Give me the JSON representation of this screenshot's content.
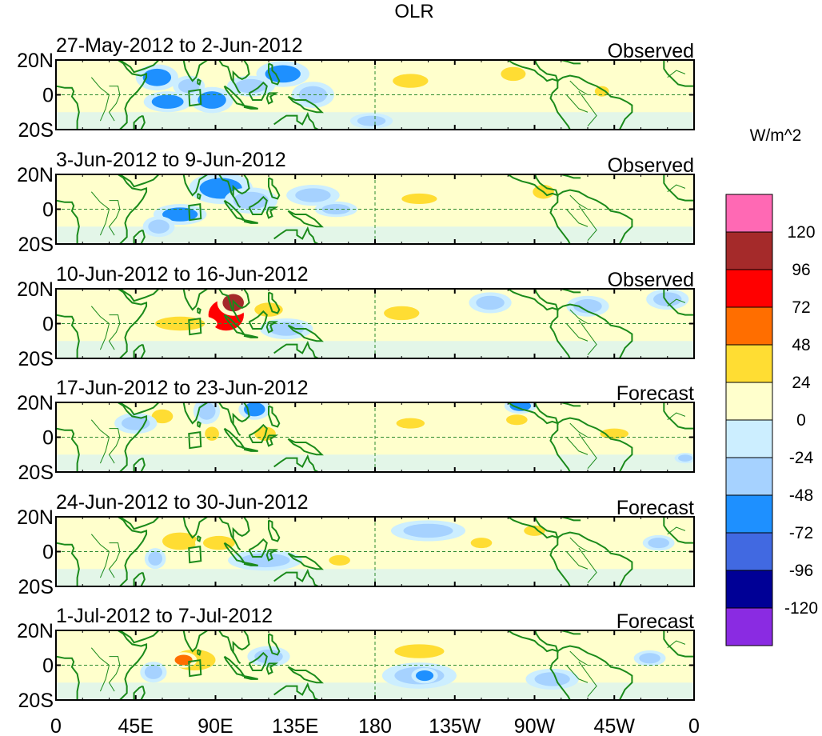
{
  "chart_data": {
    "type": "heatmap",
    "title": "OLR",
    "units": "W/m^2",
    "x_tick_labels": [
      "0",
      "45E",
      "90E",
      "135E",
      "180",
      "135W",
      "90W",
      "45W",
      "0"
    ],
    "x_tick_lons": [
      0,
      45,
      90,
      135,
      180,
      225,
      270,
      315,
      360
    ],
    "y_tick_labels": [
      "20N",
      "0",
      "20S"
    ],
    "y_tick_lats": [
      20,
      0,
      -20
    ],
    "lon_range": [
      0,
      360
    ],
    "lat_range": [
      -20,
      20
    ],
    "colorbar": {
      "levels": [
        "120",
        "96",
        "72",
        "48",
        "24",
        "0",
        "-24",
        "-48",
        "-72",
        "-96",
        "-120"
      ],
      "colors": [
        "#ff69b4",
        "#a52a2a",
        "#ff0000",
        "#ff6e00",
        "#ffdd33",
        "#ffffcc",
        "#cceeff",
        "#a6d2ff",
        "#1e90ff",
        "#4169e1",
        "#000096",
        "#8a2be2"
      ]
    },
    "panels": [
      {
        "dates": "27-May-2012 to 2-Jun-2012",
        "status": "Observed",
        "anomalies": [
          {
            "lon": 57,
            "lat": 10,
            "rx": 8,
            "ry": 5,
            "value": -60
          },
          {
            "lon": 63,
            "lat": -4,
            "rx": 9,
            "ry": 4,
            "value": -60
          },
          {
            "lon": 88,
            "lat": -3,
            "rx": 8,
            "ry": 5,
            "value": -50
          },
          {
            "lon": 75,
            "lat": 5,
            "rx": 6,
            "ry": 4,
            "value": -40
          },
          {
            "lon": 128,
            "lat": 12,
            "rx": 10,
            "ry": 5,
            "value": -55
          },
          {
            "lon": 110,
            "lat": 5,
            "rx": 9,
            "ry": 4,
            "value": -35
          },
          {
            "lon": 145,
            "lat": 0,
            "rx": 8,
            "ry": 5,
            "value": -30
          },
          {
            "lon": 200,
            "lat": 8,
            "rx": 10,
            "ry": 4,
            "value": 30
          },
          {
            "lon": 258,
            "lat": 12,
            "rx": 7,
            "ry": 4,
            "value": 28
          },
          {
            "lon": 308,
            "lat": 2,
            "rx": 4,
            "ry": 3,
            "value": 28
          },
          {
            "lon": 178,
            "lat": -15,
            "rx": 8,
            "ry": 3,
            "value": -30
          }
        ]
      },
      {
        "dates": "3-Jun-2012 to 9-Jun-2012",
        "status": "Observed",
        "anomalies": [
          {
            "lon": 93,
            "lat": 12,
            "rx": 12,
            "ry": 6,
            "value": -55
          },
          {
            "lon": 70,
            "lat": -3,
            "rx": 10,
            "ry": 4,
            "value": -50
          },
          {
            "lon": 58,
            "lat": -10,
            "rx": 6,
            "ry": 4,
            "value": -45
          },
          {
            "lon": 110,
            "lat": 5,
            "rx": 10,
            "ry": 5,
            "value": -35
          },
          {
            "lon": 145,
            "lat": 8,
            "rx": 10,
            "ry": 4,
            "value": -30
          },
          {
            "lon": 205,
            "lat": 6,
            "rx": 10,
            "ry": 3,
            "value": 30
          },
          {
            "lon": 275,
            "lat": 10,
            "rx": 6,
            "ry": 4,
            "value": 26
          },
          {
            "lon": 158,
            "lat": 0,
            "rx": 8,
            "ry": 3,
            "value": -30
          }
        ]
      },
      {
        "dates": "10-Jun-2012 to 16-Jun-2012",
        "status": "Observed",
        "anomalies": [
          {
            "lon": 96,
            "lat": 5,
            "rx": 10,
            "ry": 9,
            "value": 75
          },
          {
            "lon": 100,
            "lat": 12,
            "rx": 6,
            "ry": 5,
            "value": 100
          },
          {
            "lon": 70,
            "lat": 0,
            "rx": 14,
            "ry": 4,
            "value": 30
          },
          {
            "lon": 120,
            "lat": 8,
            "rx": 8,
            "ry": 4,
            "value": 30
          },
          {
            "lon": 195,
            "lat": 6,
            "rx": 10,
            "ry": 4,
            "value": 28
          },
          {
            "lon": 245,
            "lat": 12,
            "rx": 8,
            "ry": 4,
            "value": -35
          },
          {
            "lon": 300,
            "lat": 10,
            "rx": 8,
            "ry": 4,
            "value": -30
          },
          {
            "lon": 345,
            "lat": 14,
            "rx": 8,
            "ry": 4,
            "value": -30
          },
          {
            "lon": 130,
            "lat": -3,
            "rx": 10,
            "ry": 4,
            "value": -30
          }
        ]
      },
      {
        "dates": "17-Jun-2012 to 23-Jun-2012",
        "status": "Forecast",
        "anomalies": [
          {
            "lon": 60,
            "lat": 12,
            "rx": 6,
            "ry": 4,
            "value": 30
          },
          {
            "lon": 85,
            "lat": 15,
            "rx": 5,
            "ry": 5,
            "value": -35
          },
          {
            "lon": 112,
            "lat": 16,
            "rx": 6,
            "ry": 4,
            "value": -50
          },
          {
            "lon": 118,
            "lat": 2,
            "rx": 6,
            "ry": 4,
            "value": 30
          },
          {
            "lon": 88,
            "lat": 2,
            "rx": 4,
            "ry": 4,
            "value": 28
          },
          {
            "lon": 260,
            "lat": 10,
            "rx": 6,
            "ry": 3,
            "value": 28
          },
          {
            "lon": 262,
            "lat": 18,
            "rx": 6,
            "ry": 3,
            "value": -50
          },
          {
            "lon": 315,
            "lat": 2,
            "rx": 8,
            "ry": 3,
            "value": 30
          },
          {
            "lon": 200,
            "lat": 8,
            "rx": 8,
            "ry": 3,
            "value": 28
          },
          {
            "lon": 355,
            "lat": -12,
            "rx": 4,
            "ry": 2,
            "value": -35
          },
          {
            "lon": 45,
            "lat": 8,
            "rx": 8,
            "ry": 4,
            "value": -25
          }
        ]
      },
      {
        "dates": "24-Jun-2012 to 30-Jun-2012",
        "status": "Forecast",
        "anomalies": [
          {
            "lon": 70,
            "lat": 6,
            "rx": 10,
            "ry": 5,
            "value": 30
          },
          {
            "lon": 92,
            "lat": 5,
            "rx": 9,
            "ry": 4,
            "value": 30
          },
          {
            "lon": 56,
            "lat": -4,
            "rx": 4,
            "ry": 4,
            "value": -40
          },
          {
            "lon": 118,
            "lat": -5,
            "rx": 14,
            "ry": 4,
            "value": -28
          },
          {
            "lon": 160,
            "lat": -5,
            "rx": 6,
            "ry": 3,
            "value": 26
          },
          {
            "lon": 240,
            "lat": 5,
            "rx": 6,
            "ry": 3,
            "value": 30
          },
          {
            "lon": 270,
            "lat": 12,
            "rx": 6,
            "ry": 3,
            "value": 30
          },
          {
            "lon": 340,
            "lat": 5,
            "rx": 6,
            "ry": 3,
            "value": -35
          },
          {
            "lon": 210,
            "lat": 12,
            "rx": 14,
            "ry": 4,
            "value": -25
          }
        ]
      },
      {
        "dates": "1-Jul-2012 to 7-Jul-2012",
        "status": "Forecast",
        "anomalies": [
          {
            "lon": 78,
            "lat": 3,
            "rx": 12,
            "ry": 6,
            "value": 35
          },
          {
            "lon": 72,
            "lat": 3,
            "rx": 5,
            "ry": 3,
            "value": 60
          },
          {
            "lon": 55,
            "lat": -4,
            "rx": 5,
            "ry": 4,
            "value": -45
          },
          {
            "lon": 205,
            "lat": 8,
            "rx": 14,
            "ry": 4,
            "value": 30
          },
          {
            "lon": 205,
            "lat": -6,
            "rx": 14,
            "ry": 5,
            "value": -40
          },
          {
            "lon": 208,
            "lat": -6,
            "rx": 5,
            "ry": 3,
            "value": -70
          },
          {
            "lon": 120,
            "lat": 5,
            "rx": 8,
            "ry": 4,
            "value": -30
          },
          {
            "lon": 280,
            "lat": -8,
            "rx": 10,
            "ry": 4,
            "value": -25
          },
          {
            "lon": 335,
            "lat": 4,
            "rx": 6,
            "ry": 3,
            "value": -30
          }
        ]
      }
    ]
  }
}
